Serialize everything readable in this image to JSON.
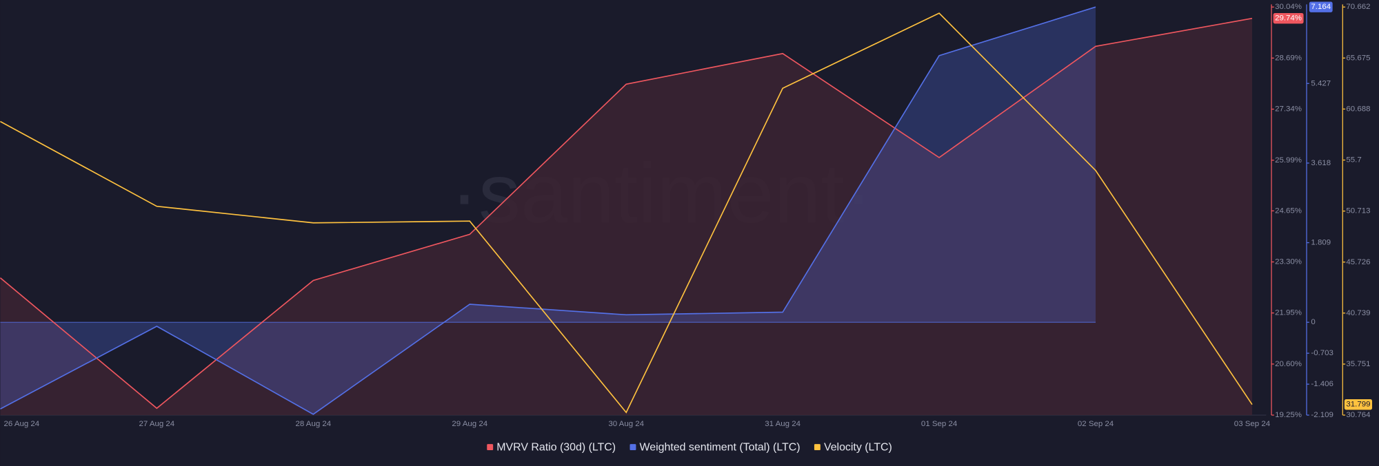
{
  "chart_data": {
    "type": "line",
    "watermark": "·santiment·",
    "categories": [
      "26 Aug 24",
      "27 Aug 24",
      "28 Aug 24",
      "29 Aug 24",
      "30 Aug 24",
      "31 Aug 24",
      "01 Sep 24",
      "02 Sep 24",
      "03 Sep 24"
    ],
    "series": [
      {
        "name": "MVRV Ratio (30d) (LTC)",
        "color": "#f0575f",
        "fill": "#3a2432",
        "values": [
          22.88,
          19.43,
          22.81,
          24.03,
          28.0,
          28.81,
          26.06,
          29.0,
          29.74
        ],
        "value_labels": [
          null,
          null,
          null,
          null,
          null,
          null,
          null,
          null,
          "29.74%"
        ]
      },
      {
        "name": "Weighted sentiment (Total) (LTC)",
        "color": "#5470e6",
        "fill": "#5470e6",
        "axis": "y2",
        "values": [
          -1.97,
          -0.09,
          -2.09,
          0.41,
          0.17,
          0.23,
          6.06,
          7.164,
          null
        ]
      },
      {
        "name": "Velocity (LTC)",
        "color": "#ffc23f",
        "axis": "y3",
        "values": [
          59.47,
          51.18,
          49.56,
          49.73,
          31.02,
          62.72,
          70.06,
          54.68,
          31.799
        ]
      }
    ],
    "ylim": [
      19.25,
      30.04
    ],
    "yticks": [
      {
        "value": 19.25,
        "label": "19.25%"
      },
      {
        "value": 20.6,
        "label": "20.60%"
      },
      {
        "value": 21.95,
        "label": "21.95%"
      },
      {
        "value": 23.3,
        "label": "23.30%"
      },
      {
        "value": 24.65,
        "label": "24.65%"
      },
      {
        "value": 25.99,
        "label": "25.99%"
      },
      {
        "value": 27.34,
        "label": "27.34%"
      },
      {
        "value": 28.69,
        "label": "28.69%"
      },
      {
        "value": 30.04,
        "label": "30.04%"
      }
    ],
    "y2lim": [
      -2.109,
      7.164
    ],
    "y2ticks": [
      -2.109,
      -1.406,
      -0.703,
      0,
      1.809,
      3.618,
      5.427
    ],
    "y3lim": [
      30.764,
      70.662
    ],
    "y3ticks": [
      30.764,
      35.751,
      40.739,
      45.726,
      50.713,
      55.7,
      60.688,
      65.675,
      70.662
    ]
  }
}
